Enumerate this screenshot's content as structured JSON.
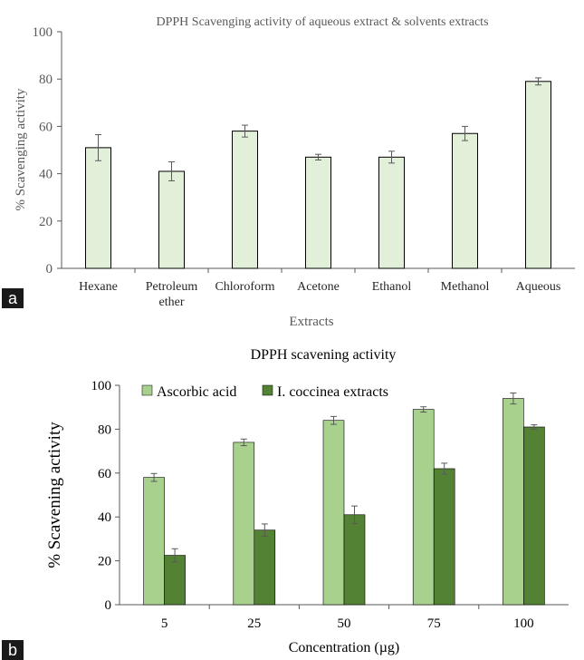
{
  "figure": {
    "panel_a_label": "a",
    "panel_b_label": "b"
  },
  "colors": {
    "panel_a_bar": "#e2f0d9",
    "panel_a_bar_border": "#000000",
    "ascorbic": "#a9d18e",
    "coccinea": "#548235",
    "axis": "#595959",
    "error_bar": "#595959"
  },
  "chart_data": [
    {
      "type": "bar",
      "title": "DPPH Scavenging activity of aqueous extract & solvents extracts",
      "xlabel": "Extracts",
      "ylabel": "% Scavenging activity",
      "ylim": [
        0,
        100
      ],
      "yticks": [
        0,
        20,
        40,
        60,
        80,
        100
      ],
      "grid": false,
      "categories": [
        "Hexane",
        "Petroleum ether",
        "Chloroform",
        "Acetone",
        "Ethanol",
        "Methanol",
        "Aqueous"
      ],
      "category_label_lines": [
        [
          "Hexane"
        ],
        [
          "Petroleum",
          "ether"
        ],
        [
          "Chloroform"
        ],
        [
          "Acetone"
        ],
        [
          "Ethanol"
        ],
        [
          "Methanol"
        ],
        [
          "Aqueous"
        ]
      ],
      "values": [
        51,
        41,
        58,
        47,
        47,
        57,
        79
      ],
      "errors": [
        5.5,
        4,
        2.5,
        1.2,
        2.5,
        3,
        1.5
      ]
    },
    {
      "type": "bar",
      "title": "DPPH scavening activity",
      "xlabel": "Concentration (µg)",
      "ylabel": "% Scavening activity",
      "ylim": [
        0,
        100
      ],
      "yticks": [
        0,
        20,
        40,
        60,
        80,
        100
      ],
      "grid": false,
      "legend_position": "top-left",
      "categories": [
        "5",
        "25",
        "50",
        "75",
        "100"
      ],
      "series": [
        {
          "name": "Ascorbic acid",
          "values": [
            58,
            74,
            84,
            89,
            94
          ],
          "errors": [
            1.8,
            1.5,
            1.8,
            1.2,
            2.5
          ]
        },
        {
          "name": "I. coccinea  extracts",
          "values": [
            22.5,
            34,
            41,
            62,
            81
          ],
          "errors": [
            3,
            2.8,
            4,
            2.5,
            1
          ]
        }
      ]
    }
  ]
}
